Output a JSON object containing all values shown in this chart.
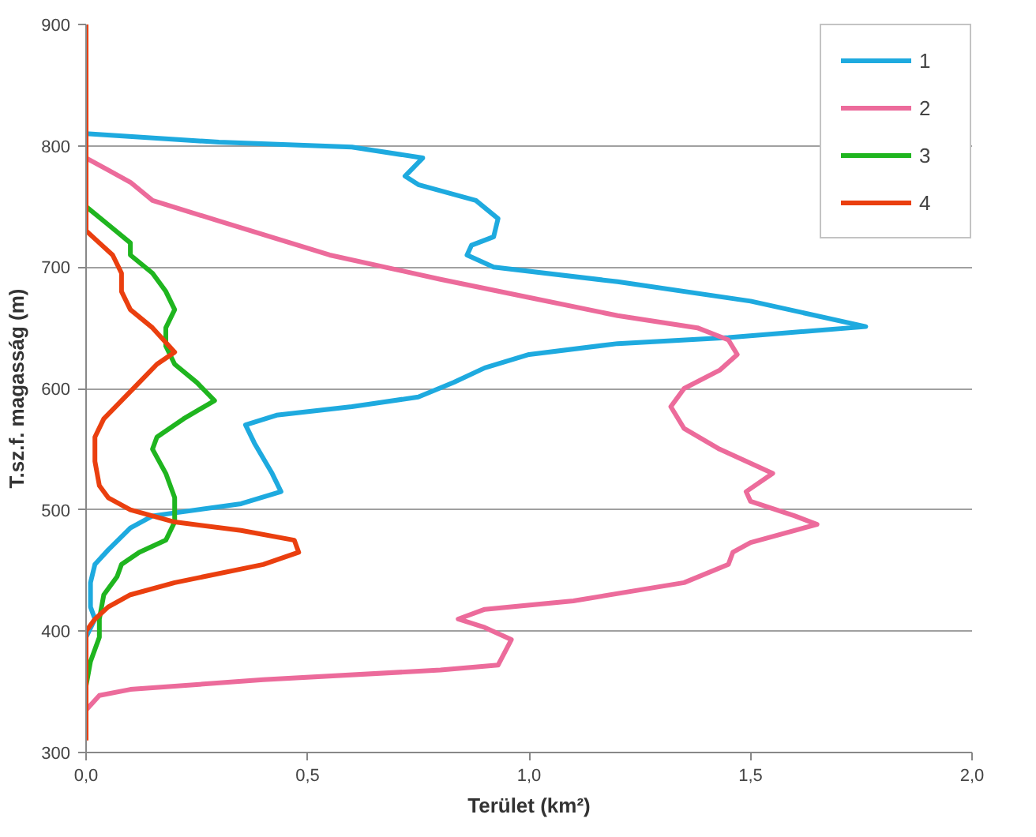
{
  "chart_data": {
    "type": "line",
    "xlabel": "Terület (km²)",
    "ylabel": "T.sz.f. magasság (m)",
    "xlim": [
      0,
      2
    ],
    "ylim": [
      300,
      900
    ],
    "xticks": [
      {
        "value": 0,
        "label": "0,0"
      },
      {
        "value": 0.5,
        "label": "0,5"
      },
      {
        "value": 1,
        "label": "1,0"
      },
      {
        "value": 1.5,
        "label": "1,5"
      },
      {
        "value": 2,
        "label": "2,0"
      }
    ],
    "yticks": [
      300,
      400,
      500,
      600,
      700,
      800,
      900
    ],
    "grid": "y",
    "legend": "top right",
    "marker": "none",
    "line_style": "solid",
    "series": [
      {
        "name": "1",
        "color": "#1eaadf",
        "x": [
          0,
          0.3,
          0.6,
          0.76,
          0.72,
          0.75,
          0.88,
          0.93,
          0.92,
          0.87,
          0.86,
          0.92,
          1.2,
          1.5,
          1.76,
          1.45,
          1.2,
          1.0,
          0.9,
          0.83,
          0.75,
          0.6,
          0.43,
          0.36,
          0.38,
          0.42,
          0.44,
          0.35,
          0.15,
          0.1,
          0.05,
          0.02,
          0.01,
          0.01,
          0.02,
          0
        ],
        "values": [
          810,
          803,
          799,
          790,
          775,
          768,
          755,
          740,
          725,
          718,
          710,
          700,
          688,
          672,
          651,
          642,
          637,
          628,
          617,
          605,
          593,
          585,
          578,
          570,
          555,
          530,
          515,
          505,
          495,
          485,
          467,
          455,
          440,
          420,
          410,
          395
        ]
      },
      {
        "name": "2",
        "color": "#ec6b9b",
        "x": [
          0,
          0.05,
          0.1,
          0.15,
          0.3,
          0.55,
          0.8,
          1.0,
          1.2,
          1.38,
          1.45,
          1.47,
          1.43,
          1.35,
          1.32,
          1.35,
          1.43,
          1.55,
          1.49,
          1.5,
          1.6,
          1.65,
          1.5,
          1.46,
          1.45,
          1.35,
          1.1,
          0.9,
          0.84,
          0.9,
          0.96,
          0.93,
          0.8,
          0.4,
          0.1,
          0.03,
          0,
          0
        ],
        "values": [
          790,
          780,
          770,
          755,
          738,
          710,
          690,
          675,
          660,
          650,
          640,
          628,
          615,
          600,
          585,
          567,
          550,
          530,
          515,
          507,
          495,
          488,
          473,
          465,
          455,
          440,
          425,
          418,
          410,
          403,
          393,
          372,
          368,
          360,
          352,
          347,
          335,
          330
        ]
      },
      {
        "name": "3",
        "color": "#1fb51f",
        "x": [
          0,
          0.05,
          0.1,
          0.1,
          0.15,
          0.18,
          0.2,
          0.18,
          0.18,
          0.2,
          0.25,
          0.29,
          0.22,
          0.16,
          0.15,
          0.18,
          0.2,
          0.2,
          0.18,
          0.12,
          0.08,
          0.07,
          0.04,
          0.03,
          0.03,
          0.01,
          0
        ],
        "values": [
          750,
          735,
          720,
          710,
          695,
          680,
          665,
          650,
          635,
          620,
          605,
          590,
          575,
          560,
          550,
          530,
          510,
          490,
          475,
          465,
          455,
          445,
          430,
          410,
          395,
          375,
          355
        ]
      },
      {
        "name": "4",
        "color": "#ea3f0f",
        "x": [
          0,
          0,
          0.03,
          0.06,
          0.08,
          0.08,
          0.1,
          0.15,
          0.2,
          0.16,
          0.12,
          0.08,
          0.04,
          0.02,
          0.02,
          0.03,
          0.05,
          0.1,
          0.2,
          0.35,
          0.47,
          0.48,
          0.4,
          0.2,
          0.1,
          0.05,
          0.02,
          0,
          0
        ],
        "values": [
          900,
          730,
          720,
          710,
          695,
          680,
          665,
          650,
          630,
          620,
          605,
          590,
          575,
          560,
          540,
          520,
          510,
          500,
          490,
          483,
          475,
          465,
          455,
          440,
          430,
          420,
          410,
          400,
          310
        ]
      }
    ]
  }
}
